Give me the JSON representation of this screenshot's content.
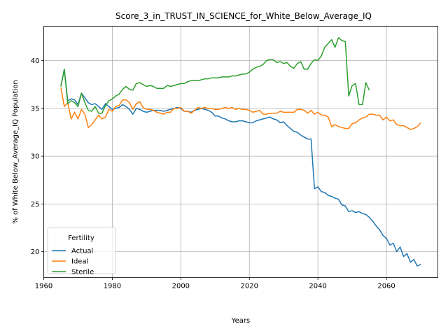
{
  "chart_data": {
    "type": "line",
    "title": "Score_3_in_TRUST_IN_SCIENCE_for_White_Below_Average_IQ",
    "xlabel": "Years",
    "ylabel": "% of White Below_Average_IQ Population",
    "xlim": [
      1960,
      2075
    ],
    "ylim": [
      17.3,
      43.6
    ],
    "xticks": [
      1960,
      1980,
      2000,
      2020,
      2040,
      2060
    ],
    "yticks": [
      20,
      25,
      30,
      35,
      40
    ],
    "grid": true,
    "legend": {
      "title": "Fertility",
      "placement": "lower-left"
    },
    "series": [
      {
        "name": "Actual",
        "color": "#1f77b4",
        "x": [
          1965,
          1966,
          1967,
          1968,
          1969,
          1970,
          1971,
          1972,
          1973,
          1974,
          1975,
          1976,
          1977,
          1978,
          1979,
          1980,
          1981,
          1982,
          1983,
          1984,
          1985,
          1986,
          1987,
          1988,
          1989,
          1990,
          1991,
          1992,
          1993,
          1994,
          1995,
          1996,
          1997,
          1998,
          1999,
          2000,
          2001,
          2002,
          2003,
          2004,
          2005,
          2006,
          2007,
          2008,
          2009,
          2010,
          2011,
          2012,
          2013,
          2014,
          2015,
          2016,
          2017,
          2018,
          2019,
          2020,
          2021,
          2022,
          2023,
          2024,
          2025,
          2026,
          2027,
          2028,
          2029,
          2030,
          2031,
          2032,
          2033,
          2034,
          2035,
          2036,
          2037,
          2038,
          2039,
          2040,
          2041,
          2042,
          2043,
          2044,
          2045,
          2046,
          2047,
          2048,
          2049,
          2050,
          2051,
          2052,
          2053,
          2054,
          2055,
          2056,
          2057,
          2058,
          2059,
          2060,
          2061,
          2062,
          2063,
          2064,
          2065,
          2066,
          2067,
          2068,
          2069,
          2070
        ],
        "y": [
          37.3,
          39.1,
          35.8,
          36.0,
          35.9,
          35.4,
          36.6,
          36.1,
          35.6,
          35.4,
          35.5,
          35.2,
          34.9,
          35.5,
          35.2,
          34.9,
          35.0,
          35.1,
          35.4,
          35.2,
          34.9,
          34.4,
          35.0,
          34.9,
          34.7,
          34.6,
          34.7,
          34.8,
          34.8,
          34.8,
          34.7,
          34.8,
          34.9,
          35.0,
          35.1,
          35.0,
          34.7,
          34.7,
          34.6,
          34.8,
          34.9,
          35.0,
          34.9,
          34.8,
          34.6,
          34.2,
          34.2,
          34.0,
          33.9,
          33.7,
          33.6,
          33.6,
          33.7,
          33.7,
          33.6,
          33.5,
          33.5,
          33.7,
          33.8,
          33.9,
          34.0,
          34.1,
          33.9,
          33.8,
          33.5,
          33.6,
          33.2,
          32.9,
          32.6,
          32.5,
          32.2,
          32.0,
          31.8,
          31.8,
          26.6,
          26.8,
          26.3,
          26.2,
          25.9,
          25.8,
          25.6,
          25.5,
          24.9,
          24.8,
          24.2,
          24.3,
          24.1,
          24.2,
          24.0,
          23.9,
          23.6,
          23.2,
          22.7,
          22.3,
          21.7,
          21.4,
          20.7,
          20.9,
          20.0,
          20.5,
          19.5,
          19.8,
          18.9,
          19.2,
          18.5,
          18.7
        ]
      },
      {
        "name": "Ideal",
        "color": "#ff7f0e",
        "x": [
          1965,
          1966,
          1967,
          1968,
          1969,
          1970,
          1971,
          1972,
          1973,
          1974,
          1975,
          1976,
          1977,
          1978,
          1979,
          1980,
          1981,
          1982,
          1983,
          1984,
          1985,
          1986,
          1987,
          1988,
          1989,
          1990,
          1991,
          1992,
          1993,
          1994,
          1995,
          1996,
          1997,
          1998,
          1999,
          2000,
          2001,
          2002,
          2003,
          2004,
          2005,
          2006,
          2007,
          2008,
          2009,
          2010,
          2011,
          2012,
          2013,
          2014,
          2015,
          2016,
          2017,
          2018,
          2019,
          2020,
          2021,
          2022,
          2023,
          2024,
          2025,
          2026,
          2027,
          2028,
          2029,
          2030,
          2031,
          2032,
          2033,
          2034,
          2035,
          2036,
          2037,
          2038,
          2039,
          2040,
          2041,
          2042,
          2043,
          2044,
          2045,
          2046,
          2047,
          2048,
          2049,
          2050,
          2051,
          2052,
          2053,
          2054,
          2055,
          2056,
          2057,
          2058,
          2059,
          2060,
          2061,
          2062,
          2063,
          2064,
          2065,
          2066,
          2067,
          2068,
          2069,
          2070
        ],
        "y": [
          37.2,
          35.2,
          35.6,
          33.9,
          34.6,
          33.9,
          34.9,
          34.4,
          33.0,
          33.3,
          33.8,
          34.3,
          33.9,
          34.1,
          34.9,
          34.7,
          35.2,
          35.3,
          35.9,
          35.9,
          35.6,
          34.9,
          35.5,
          35.7,
          35.1,
          34.9,
          34.9,
          34.8,
          34.6,
          34.5,
          34.4,
          34.6,
          34.6,
          35.0,
          35.0,
          35.1,
          34.7,
          34.7,
          34.5,
          34.8,
          35.1,
          35.0,
          35.1,
          35.0,
          35.0,
          34.9,
          34.9,
          35.0,
          35.1,
          35.0,
          35.1,
          34.9,
          35.0,
          34.9,
          34.9,
          34.8,
          34.6,
          34.7,
          34.8,
          34.4,
          34.4,
          34.5,
          34.5,
          34.5,
          34.7,
          34.6,
          34.6,
          34.6,
          34.6,
          34.9,
          34.9,
          34.8,
          34.5,
          34.8,
          34.4,
          34.6,
          34.3,
          34.3,
          34.1,
          33.1,
          33.3,
          33.1,
          33.0,
          32.9,
          32.9,
          33.4,
          33.5,
          33.8,
          34.0,
          34.1,
          34.4,
          34.4,
          34.3,
          34.3,
          33.8,
          34.1,
          33.7,
          33.8,
          33.3,
          33.2,
          33.2,
          33.0,
          32.8,
          32.9,
          33.1,
          33.5
        ]
      },
      {
        "name": "Sterile",
        "color": "#2ca02c",
        "x": [
          1965,
          1966,
          1967,
          1968,
          1969,
          1970,
          1971,
          1972,
          1973,
          1974,
          1975,
          1976,
          1977,
          1978,
          1979,
          1980,
          1981,
          1982,
          1983,
          1984,
          1985,
          1986,
          1987,
          1988,
          1989,
          1990,
          1991,
          1992,
          1993,
          1994,
          1995,
          1996,
          1997,
          1998,
          1999,
          2000,
          2001,
          2002,
          2003,
          2004,
          2005,
          2006,
          2007,
          2008,
          2009,
          2010,
          2011,
          2012,
          2013,
          2014,
          2015,
          2016,
          2017,
          2018,
          2019,
          2020,
          2021,
          2022,
          2023,
          2024,
          2025,
          2026,
          2027,
          2028,
          2029,
          2030,
          2031,
          2032,
          2033,
          2034,
          2035,
          2036,
          2037,
          2038,
          2039,
          2040,
          2041,
          2042,
          2043,
          2044,
          2045,
          2046,
          2047,
          2048,
          2049,
          2050,
          2051,
          2052,
          2053,
          2054,
          2055
        ],
        "y": [
          37.3,
          39.1,
          35.5,
          35.8,
          35.6,
          35.2,
          36.6,
          35.6,
          34.8,
          34.7,
          35.2,
          34.5,
          34.5,
          35.3,
          35.8,
          36.0,
          36.3,
          36.5,
          37.0,
          37.3,
          37.0,
          36.9,
          37.6,
          37.7,
          37.5,
          37.3,
          37.4,
          37.3,
          37.1,
          37.1,
          37.1,
          37.4,
          37.3,
          37.4,
          37.5,
          37.6,
          37.6,
          37.8,
          37.9,
          37.9,
          37.9,
          38.0,
          38.1,
          38.1,
          38.2,
          38.2,
          38.2,
          38.3,
          38.3,
          38.3,
          38.4,
          38.4,
          38.5,
          38.6,
          38.6,
          38.8,
          39.1,
          39.3,
          39.4,
          39.6,
          40.0,
          40.1,
          40.1,
          39.8,
          39.9,
          39.7,
          39.8,
          39.4,
          39.2,
          39.7,
          39.9,
          39.1,
          39.1,
          39.7,
          40.1,
          40.0,
          40.5,
          41.4,
          41.8,
          42.2,
          41.4,
          42.4,
          42.1,
          42.0,
          36.3,
          37.4,
          37.6,
          35.4,
          35.4,
          37.7,
          36.9
        ]
      }
    ]
  }
}
